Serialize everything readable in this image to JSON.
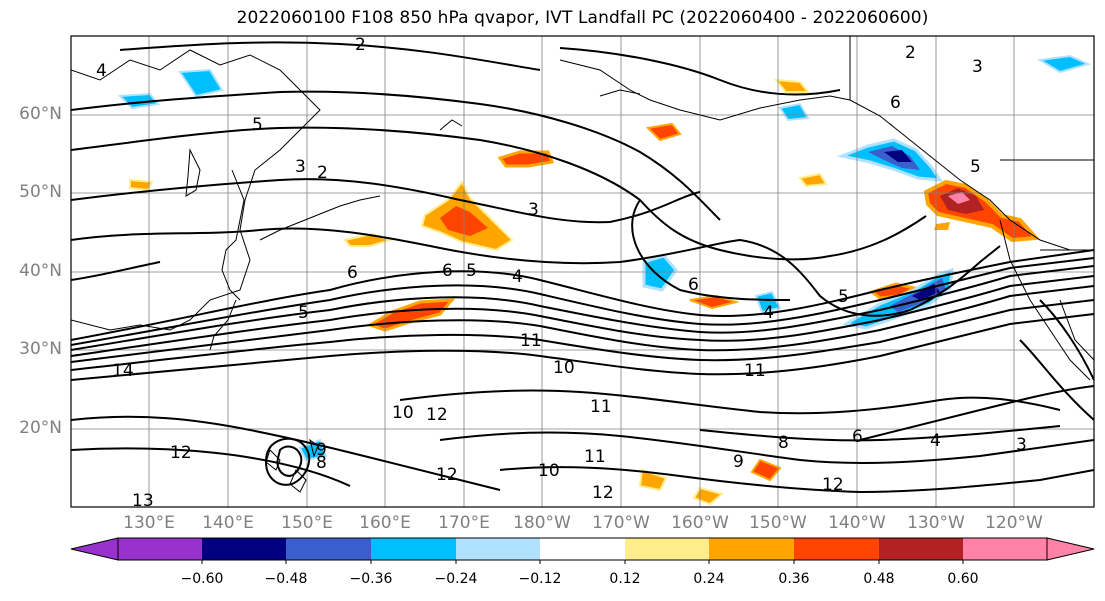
{
  "title": "2022060100 F108 850 hPa qvapor, IVT Landfall PC (2022060400 - 2022060600)",
  "map": {
    "lat_labels": [
      "60°N",
      "50°N",
      "40°N",
      "30°N",
      "20°N"
    ],
    "lon_labels": [
      "130°E",
      "140°E",
      "150°E",
      "160°E",
      "170°E",
      "180°W",
      "170°W",
      "160°W",
      "150°W",
      "140°W",
      "130°W",
      "120°W"
    ],
    "contour_labels": [
      {
        "t": "2"
      },
      {
        "t": "3"
      },
      {
        "t": "4"
      },
      {
        "t": "5"
      },
      {
        "t": "6"
      },
      {
        "t": "8"
      },
      {
        "t": "9"
      },
      {
        "t": "10"
      },
      {
        "t": "11"
      },
      {
        "t": "12"
      },
      {
        "t": "13"
      },
      {
        "t": "14"
      }
    ]
  },
  "colorbar": {
    "colors": [
      "#9932cc",
      "#000080",
      "#3a5fcd",
      "#00bfff",
      "#b0e2ff",
      "#ffffff",
      "#ffec8b",
      "#ffa500",
      "#ff4500",
      "#b22222",
      "#ff83a8"
    ],
    "extend_low_color": "#9932cc",
    "extend_high_color": "#ff83a8",
    "tick_labels": [
      "−0.60",
      "−0.48",
      "−0.36",
      "−0.24",
      "−0.12",
      "0.12",
      "0.24",
      "0.36",
      "0.48",
      "0.60"
    ]
  }
}
